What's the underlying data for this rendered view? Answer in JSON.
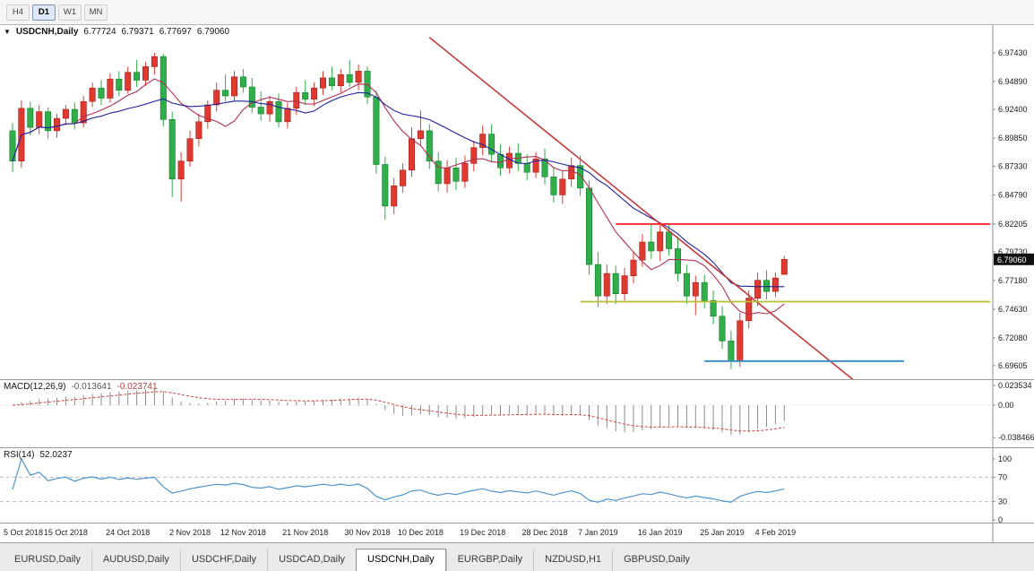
{
  "toolbar": {
    "timeframes": [
      {
        "label": "H4",
        "active": false
      },
      {
        "label": "D1",
        "active": true
      },
      {
        "label": "W1",
        "active": false
      },
      {
        "label": "MN",
        "active": false
      }
    ]
  },
  "chart_header": {
    "marker": "▼",
    "symbol_label": "USDCNH,Daily",
    "open": "6.77724",
    "high": "6.79371",
    "low": "6.77697",
    "close": "6.79060"
  },
  "price_axis": {
    "labels": [
      "6.97430",
      "6.94890",
      "6.92400",
      "6.89850",
      "6.87330",
      "6.84790",
      "6.82205",
      "6.79730",
      "6.77180",
      "6.74630",
      "6.72080",
      "6.69605"
    ],
    "current_price": "6.79060"
  },
  "macd_panel": {
    "title": "MACD(12,26,9)",
    "value_main": "-0.013641",
    "value_signal": "-0.023741",
    "axis_labels": [
      "0.023534",
      "0.00",
      "-0.038466"
    ]
  },
  "rsi_panel": {
    "title": "RSI(14)",
    "value": "52.0237",
    "axis_labels": [
      "100",
      "70",
      "30",
      "0"
    ]
  },
  "date_axis": {
    "labels": [
      {
        "text": "5 Oct 2018",
        "bar": 0
      },
      {
        "text": "15 Oct 2018",
        "bar": 6
      },
      {
        "text": "24 Oct 2018",
        "bar": 13
      },
      {
        "text": "2 Nov 2018",
        "bar": 20
      },
      {
        "text": "12 Nov 2018",
        "bar": 26
      },
      {
        "text": "21 Nov 2018",
        "bar": 33
      },
      {
        "text": "30 Nov 2018",
        "bar": 40
      },
      {
        "text": "10 Dec 2018",
        "bar": 46
      },
      {
        "text": "19 Dec 2018",
        "bar": 53
      },
      {
        "text": "28 Dec 2018",
        "bar": 60
      },
      {
        "text": "7 Jan 2019",
        "bar": 66
      },
      {
        "text": "16 Jan 2019",
        "bar": 73
      },
      {
        "text": "25 Jan 2019",
        "bar": 80
      },
      {
        "text": "4 Feb 2019",
        "bar": 86
      }
    ]
  },
  "tabs": [
    {
      "label": "EURUSD,Daily",
      "active": false
    },
    {
      "label": "AUDUSD,Daily",
      "active": false
    },
    {
      "label": "USDCHF,Daily",
      "active": false
    },
    {
      "label": "USDCAD,Daily",
      "active": false
    },
    {
      "label": "USDCNH,Daily",
      "active": true
    },
    {
      "label": "EURGBP,Daily",
      "active": false
    },
    {
      "label": "NZDUSD,H1",
      "active": false
    },
    {
      "label": "GBPUSD,Daily",
      "active": false
    }
  ],
  "chart_data": {
    "type": "candlestick",
    "symbol": "USDCNH",
    "timeframe": "Daily",
    "price_range": {
      "min": 6.684,
      "max": 6.999
    },
    "axis_values": [
      6.9743,
      6.9489,
      6.924,
      6.8985,
      6.8733,
      6.8479,
      6.82205,
      6.7973,
      6.7718,
      6.7463,
      6.7208,
      6.69605
    ],
    "current_price": 6.7906,
    "colors": {
      "up": "#e03a30",
      "up_border": "#9e1f1a",
      "down": "#2fae4a",
      "down_border": "#157a2e",
      "ma_fast": "#b03054",
      "ma_slow": "#20209a",
      "trendline": "#c43b3b",
      "resistance": "#ff2d2d",
      "support": "#b9bd33",
      "support_low": "#3f8fc4",
      "macd_hist": "#8c8c8c",
      "macd_signal": "#d04040",
      "rsi_line": "#4f94cd"
    },
    "moving_averages": [
      {
        "period": 8,
        "color_key": "ma_fast"
      },
      {
        "period": 17,
        "color_key": "ma_slow"
      }
    ],
    "overlay_lines": {
      "trendline": {
        "bar1": 47,
        "price1": 6.988,
        "bar2": 95,
        "price2": 6.682
      },
      "resistance": {
        "price": 6.822,
        "bar_start": 68,
        "to_edge": true
      },
      "support": {
        "price": 6.753,
        "bar_start": 64,
        "to_edge": true
      },
      "support_low": {
        "price": 6.7,
        "bar_start": 78,
        "bar_end": 100.5
      }
    },
    "macd": {
      "fast": 12,
      "slow": 26,
      "signal": 9,
      "range": {
        "min": -0.05,
        "max": 0.03
      },
      "axis_values": [
        0.023534,
        0.0,
        -0.038466
      ]
    },
    "rsi": {
      "period": 14,
      "levels": [
        70,
        30
      ],
      "axis_values": [
        100,
        70,
        30,
        0
      ]
    },
    "candles": [
      [
        6.905,
        6.912,
        6.868,
        6.878
      ],
      [
        6.878,
        6.932,
        6.872,
        6.925
      ],
      [
        6.925,
        6.931,
        6.901,
        6.908
      ],
      [
        6.908,
        6.928,
        6.902,
        6.922
      ],
      [
        6.922,
        6.926,
        6.898,
        6.905
      ],
      [
        6.905,
        6.92,
        6.899,
        6.916
      ],
      [
        6.916,
        6.928,
        6.91,
        6.924
      ],
      [
        6.924,
        6.93,
        6.906,
        6.912
      ],
      [
        6.912,
        6.936,
        6.908,
        6.931
      ],
      [
        6.931,
        6.948,
        6.926,
        6.943
      ],
      [
        6.943,
        6.95,
        6.928,
        6.934
      ],
      [
        6.934,
        6.956,
        6.93,
        6.951
      ],
      [
        6.951,
        6.958,
        6.936,
        6.941
      ],
      [
        6.941,
        6.962,
        6.938,
        6.957
      ],
      [
        6.957,
        6.968,
        6.944,
        6.95
      ],
      [
        6.95,
        6.966,
        6.945,
        6.962
      ],
      [
        6.962,
        6.9743,
        6.955,
        6.971
      ],
      [
        6.971,
        6.9735,
        6.909,
        6.915
      ],
      [
        6.915,
        6.922,
        6.846,
        6.862
      ],
      [
        6.862,
        6.886,
        6.842,
        6.878
      ],
      [
        6.878,
        6.905,
        6.873,
        6.898
      ],
      [
        6.898,
        6.92,
        6.891,
        6.913
      ],
      [
        6.913,
        6.932,
        6.907,
        6.928
      ],
      [
        6.928,
        6.948,
        6.922,
        6.941
      ],
      [
        6.941,
        6.955,
        6.931,
        6.936
      ],
      [
        6.936,
        6.958,
        6.932,
        6.953
      ],
      [
        6.953,
        6.96,
        6.939,
        6.944
      ],
      [
        6.944,
        6.952,
        6.921,
        6.926
      ],
      [
        6.926,
        6.94,
        6.914,
        6.92
      ],
      [
        6.92,
        6.936,
        6.913,
        6.931
      ],
      [
        6.931,
        6.938,
        6.908,
        6.913
      ],
      [
        6.913,
        6.93,
        6.907,
        6.925
      ],
      [
        6.925,
        6.944,
        6.919,
        6.939
      ],
      [
        6.939,
        6.95,
        6.928,
        6.933
      ],
      [
        6.933,
        6.948,
        6.927,
        6.943
      ],
      [
        6.943,
        6.958,
        6.937,
        6.952
      ],
      [
        6.952,
        6.962,
        6.941,
        6.945
      ],
      [
        6.945,
        6.96,
        6.939,
        6.955
      ],
      [
        6.955,
        6.968,
        6.944,
        6.948
      ],
      [
        6.948,
        6.964,
        6.941,
        6.958
      ],
      [
        6.958,
        6.962,
        6.929,
        6.935
      ],
      [
        6.935,
        6.941,
        6.867,
        6.875
      ],
      [
        6.875,
        6.882,
        6.826,
        6.838
      ],
      [
        6.838,
        6.863,
        6.831,
        6.856
      ],
      [
        6.856,
        6.876,
        6.85,
        6.87
      ],
      [
        6.87,
        6.908,
        6.864,
        6.898
      ],
      [
        6.898,
        6.923,
        6.891,
        6.905
      ],
      [
        6.905,
        6.911,
        6.871,
        6.878
      ],
      [
        6.878,
        6.886,
        6.851,
        6.858
      ],
      [
        6.858,
        6.879,
        6.85,
        6.872
      ],
      [
        6.872,
        6.881,
        6.852,
        6.86
      ],
      [
        6.86,
        6.883,
        6.854,
        6.876
      ],
      [
        6.876,
        6.896,
        6.869,
        6.89
      ],
      [
        6.89,
        6.91,
        6.883,
        6.902
      ],
      [
        6.902,
        6.911,
        6.877,
        6.884
      ],
      [
        6.884,
        6.893,
        6.865,
        6.872
      ],
      [
        6.872,
        6.891,
        6.867,
        6.885
      ],
      [
        6.885,
        6.894,
        6.869,
        6.876
      ],
      [
        6.876,
        6.884,
        6.861,
        6.868
      ],
      [
        6.868,
        6.886,
        6.863,
        6.88
      ],
      [
        6.88,
        6.889,
        6.857,
        6.864
      ],
      [
        6.864,
        6.873,
        6.841,
        6.848
      ],
      [
        6.848,
        6.869,
        6.84,
        6.862
      ],
      [
        6.862,
        6.881,
        6.855,
        6.874
      ],
      [
        6.874,
        6.883,
        6.847,
        6.854
      ],
      [
        6.854,
        6.861,
        6.777,
        6.786
      ],
      [
        6.786,
        6.797,
        6.748,
        6.758
      ],
      [
        6.758,
        6.786,
        6.751,
        6.778
      ],
      [
        6.778,
        6.785,
        6.751,
        6.76
      ],
      [
        6.76,
        6.783,
        6.754,
        6.776
      ],
      [
        6.776,
        6.797,
        6.769,
        6.79
      ],
      [
        6.79,
        6.813,
        6.784,
        6.806
      ],
      [
        6.806,
        6.8225,
        6.791,
        6.798
      ],
      [
        6.798,
        6.821,
        6.789,
        6.815
      ],
      [
        6.815,
        6.8228,
        6.794,
        6.8
      ],
      [
        6.8,
        6.811,
        6.771,
        6.778
      ],
      [
        6.778,
        6.786,
        6.751,
        6.758
      ],
      [
        6.758,
        6.776,
        6.741,
        6.77
      ],
      [
        6.77,
        6.777,
        6.747,
        6.754
      ],
      [
        6.754,
        6.763,
        6.733,
        6.74
      ],
      [
        6.74,
        6.749,
        6.711,
        6.718
      ],
      [
        6.718,
        6.727,
        6.693,
        6.7
      ],
      [
        6.7,
        6.743,
        6.695,
        6.736
      ],
      [
        6.736,
        6.763,
        6.729,
        6.756
      ],
      [
        6.756,
        6.779,
        6.749,
        6.772
      ],
      [
        6.772,
        6.781,
        6.755,
        6.762
      ],
      [
        6.762,
        6.779,
        6.757,
        6.774
      ],
      [
        6.77724,
        6.79371,
        6.77697,
        6.7906
      ]
    ]
  }
}
